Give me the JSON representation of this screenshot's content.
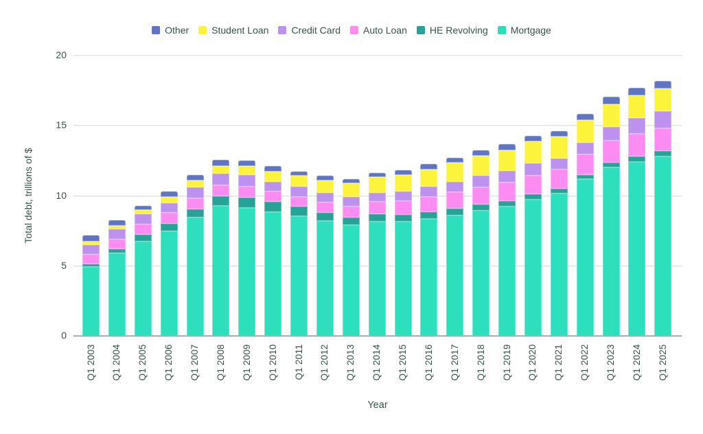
{
  "chart_data": {
    "type": "bar",
    "stacked": true,
    "title": "",
    "xlabel": "Year",
    "ylabel": "Total debt, trillions of $",
    "ylim": [
      0,
      20
    ],
    "yticks": [
      0,
      5,
      10,
      15,
      20
    ],
    "grid": true,
    "legend_position": "top",
    "categories": [
      "Q1 2003",
      "Q1 2004",
      "Q1 2005",
      "Q1 2006",
      "Q1 2007",
      "Q1 2008",
      "Q1 2009",
      "Q1 2010",
      "Q1 2011",
      "Q1 2012",
      "Q1 2013",
      "Q1 2014",
      "Q1 2015",
      "Q1 2016",
      "Q1 2017",
      "Q1 2018",
      "Q1 2019",
      "Q1 2020",
      "Q1 2021",
      "Q1 2022",
      "Q1 2023",
      "Q1 2024",
      "Q1 2025"
    ],
    "series": [
      {
        "id": "mortgage",
        "name": "Mortgage",
        "color": "#2ddfbd",
        "values": [
          4.92,
          5.92,
          6.77,
          7.49,
          8.45,
          9.28,
          9.15,
          8.87,
          8.58,
          8.21,
          7.93,
          8.16,
          8.17,
          8.37,
          8.63,
          8.94,
          9.24,
          9.71,
          10.16,
          11.18,
          12.04,
          12.44,
          12.8
        ]
      },
      {
        "id": "he_revolving",
        "name": "HE Revolving",
        "color": "#26a296",
        "values": [
          0.24,
          0.3,
          0.45,
          0.52,
          0.58,
          0.68,
          0.72,
          0.72,
          0.67,
          0.6,
          0.54,
          0.53,
          0.51,
          0.49,
          0.46,
          0.44,
          0.41,
          0.39,
          0.36,
          0.32,
          0.34,
          0.38,
          0.4
        ]
      },
      {
        "id": "auto_loan",
        "name": "Auto Loan",
        "color": "#fc8bf2",
        "values": [
          0.64,
          0.7,
          0.77,
          0.79,
          0.81,
          0.82,
          0.79,
          0.71,
          0.7,
          0.73,
          0.79,
          0.88,
          0.97,
          1.07,
          1.17,
          1.23,
          1.28,
          1.35,
          1.38,
          1.47,
          1.56,
          1.62,
          1.64
        ]
      },
      {
        "id": "credit_card",
        "name": "Credit Card",
        "color": "#bc92ee",
        "values": [
          0.69,
          0.7,
          0.7,
          0.71,
          0.77,
          0.8,
          0.82,
          0.73,
          0.7,
          0.68,
          0.66,
          0.66,
          0.68,
          0.71,
          0.76,
          0.82,
          0.85,
          0.89,
          0.77,
          0.84,
          0.99,
          1.12,
          1.18
        ]
      },
      {
        "id": "student_loan",
        "name": "Student Loan",
        "color": "#fcf43c",
        "values": [
          0.24,
          0.26,
          0.32,
          0.42,
          0.49,
          0.56,
          0.66,
          0.73,
          0.78,
          0.9,
          0.99,
          1.11,
          1.19,
          1.26,
          1.34,
          1.41,
          1.49,
          1.54,
          1.58,
          1.59,
          1.6,
          1.6,
          1.63
        ]
      },
      {
        "id": "other",
        "name": "Other",
        "color": "#5f74c5",
        "values": [
          0.47,
          0.41,
          0.28,
          0.38,
          0.37,
          0.42,
          0.4,
          0.36,
          0.33,
          0.31,
          0.3,
          0.31,
          0.33,
          0.35,
          0.37,
          0.39,
          0.41,
          0.42,
          0.39,
          0.44,
          0.52,
          0.54,
          0.56
        ]
      }
    ],
    "totals": [
      7.2,
      8.29,
      9.29,
      10.31,
      11.47,
      12.56,
      12.54,
      12.12,
      11.76,
      11.43,
      11.21,
      11.65,
      11.85,
      12.25,
      12.73,
      13.23,
      13.68,
      14.3,
      14.64,
      15.84,
      17.05,
      17.7,
      18.21
    ],
    "colors": {
      "text": "#36514b",
      "gridline": "#e9e9e9",
      "axis_line": "#acacac",
      "background": "#ffffff"
    }
  }
}
